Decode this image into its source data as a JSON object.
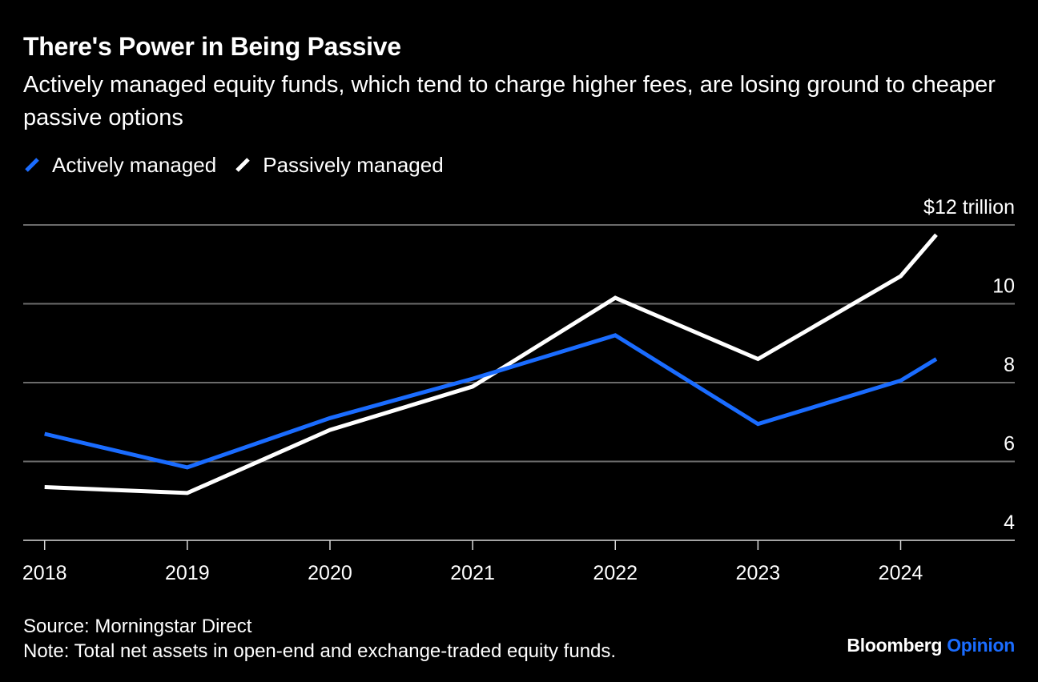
{
  "header": {
    "title": "There's Power in Being Passive",
    "subtitle": "Actively managed equity funds, which tend to charge higher fees, are losing ground to cheaper passive options"
  },
  "legend": {
    "items": [
      {
        "label": "Actively managed",
        "color": "#1a6cff"
      },
      {
        "label": "Passively managed",
        "color": "#ffffff"
      }
    ]
  },
  "footer": {
    "source": "Source: Morningstar Direct",
    "note": "Note: Total net assets in open-end and exchange-traded equity funds.",
    "brand_main": "Bloomberg",
    "brand_accent": "Opinion"
  },
  "chart_data": {
    "type": "line",
    "y_unit_label": "$12 trillion",
    "ylim": [
      4,
      12
    ],
    "y_ticks": [
      4,
      6,
      8,
      10,
      12
    ],
    "y_tick_labels": [
      "4",
      "6",
      "8",
      "10",
      "$12 trillion"
    ],
    "xlim": [
      2017.85,
      2024.8
    ],
    "x_ticks": [
      2018,
      2019,
      2020,
      2021,
      2022,
      2023,
      2024
    ],
    "x_tick_labels": [
      "2018",
      "2019",
      "2020",
      "2021",
      "2022",
      "2023",
      "2024"
    ],
    "grid": true,
    "legend_position": "top-left",
    "series": [
      {
        "name": "Actively managed",
        "color": "#1a6cff",
        "x": [
          2018.0,
          2019.0,
          2020.0,
          2021.0,
          2022.0,
          2023.0,
          2024.0,
          2024.25
        ],
        "y": [
          6.7,
          5.85,
          7.1,
          8.1,
          9.2,
          6.95,
          8.05,
          8.6
        ]
      },
      {
        "name": "Passively managed",
        "color": "#ffffff",
        "x": [
          2018.0,
          2019.0,
          2020.0,
          2021.0,
          2022.0,
          2023.0,
          2024.0,
          2024.25
        ],
        "y": [
          5.35,
          5.2,
          6.8,
          7.9,
          10.15,
          8.6,
          10.7,
          11.75
        ]
      }
    ]
  }
}
